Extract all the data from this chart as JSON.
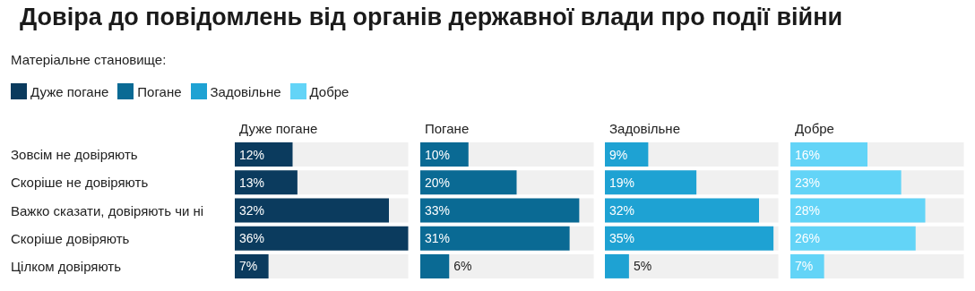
{
  "chart_data": [
    {
      "type": "other",
      "title": "Довіра до повідомлень від органів державної влади про події війни",
      "legend_title": "Матеріальне становище:",
      "categories": [
        "Дуже погане",
        "Погане",
        "Задовільне",
        "Добре"
      ],
      "colors": [
        "#0b3b5e",
        "#0a6a94",
        "#1ea2d3",
        "#63d4f7"
      ]
    },
    {
      "type": "bar",
      "orientation": "horizontal",
      "title": "Дуже погане",
      "tick_labels": "y",
      "categories": [
        "Зовсім не довіряють",
        "Скоріше не довіряють",
        "Важко сказати, довіряють чи ні",
        "Скоріше довіряють",
        "Цілком довіряють"
      ],
      "color": "#0b3b5e",
      "values": [
        12,
        13,
        32,
        36,
        7
      ],
      "value_labels": [
        "12%",
        "13%",
        "32%",
        "36%",
        "7%"
      ]
    },
    {
      "type": "bar",
      "orientation": "horizontal",
      "title": "Погане",
      "categories": [
        null,
        null,
        null,
        null,
        null
      ],
      "color": "#0a6a94",
      "values": [
        10,
        20,
        33,
        31,
        6
      ],
      "value_labels": [
        "10%",
        "20%",
        "33%",
        "31%",
        "6%"
      ]
    },
    {
      "type": "bar",
      "orientation": "horizontal",
      "title": "Задовільне",
      "categories": [
        null,
        null,
        null,
        null,
        null
      ],
      "color": "#1ea2d3",
      "values": [
        9,
        19,
        32,
        35,
        5
      ],
      "value_labels": [
        "9%",
        "19%",
        "32%",
        "35%",
        "5%"
      ]
    },
    {
      "type": "bar",
      "orientation": "horizontal",
      "title": "Добре",
      "categories": [
        null,
        null,
        null,
        null,
        null
      ],
      "color": "#63d4f7",
      "values": [
        16,
        23,
        28,
        26,
        7
      ],
      "value_labels": [
        "16%",
        "23%",
        "28%",
        "26%",
        "7%"
      ]
    }
  ]
}
